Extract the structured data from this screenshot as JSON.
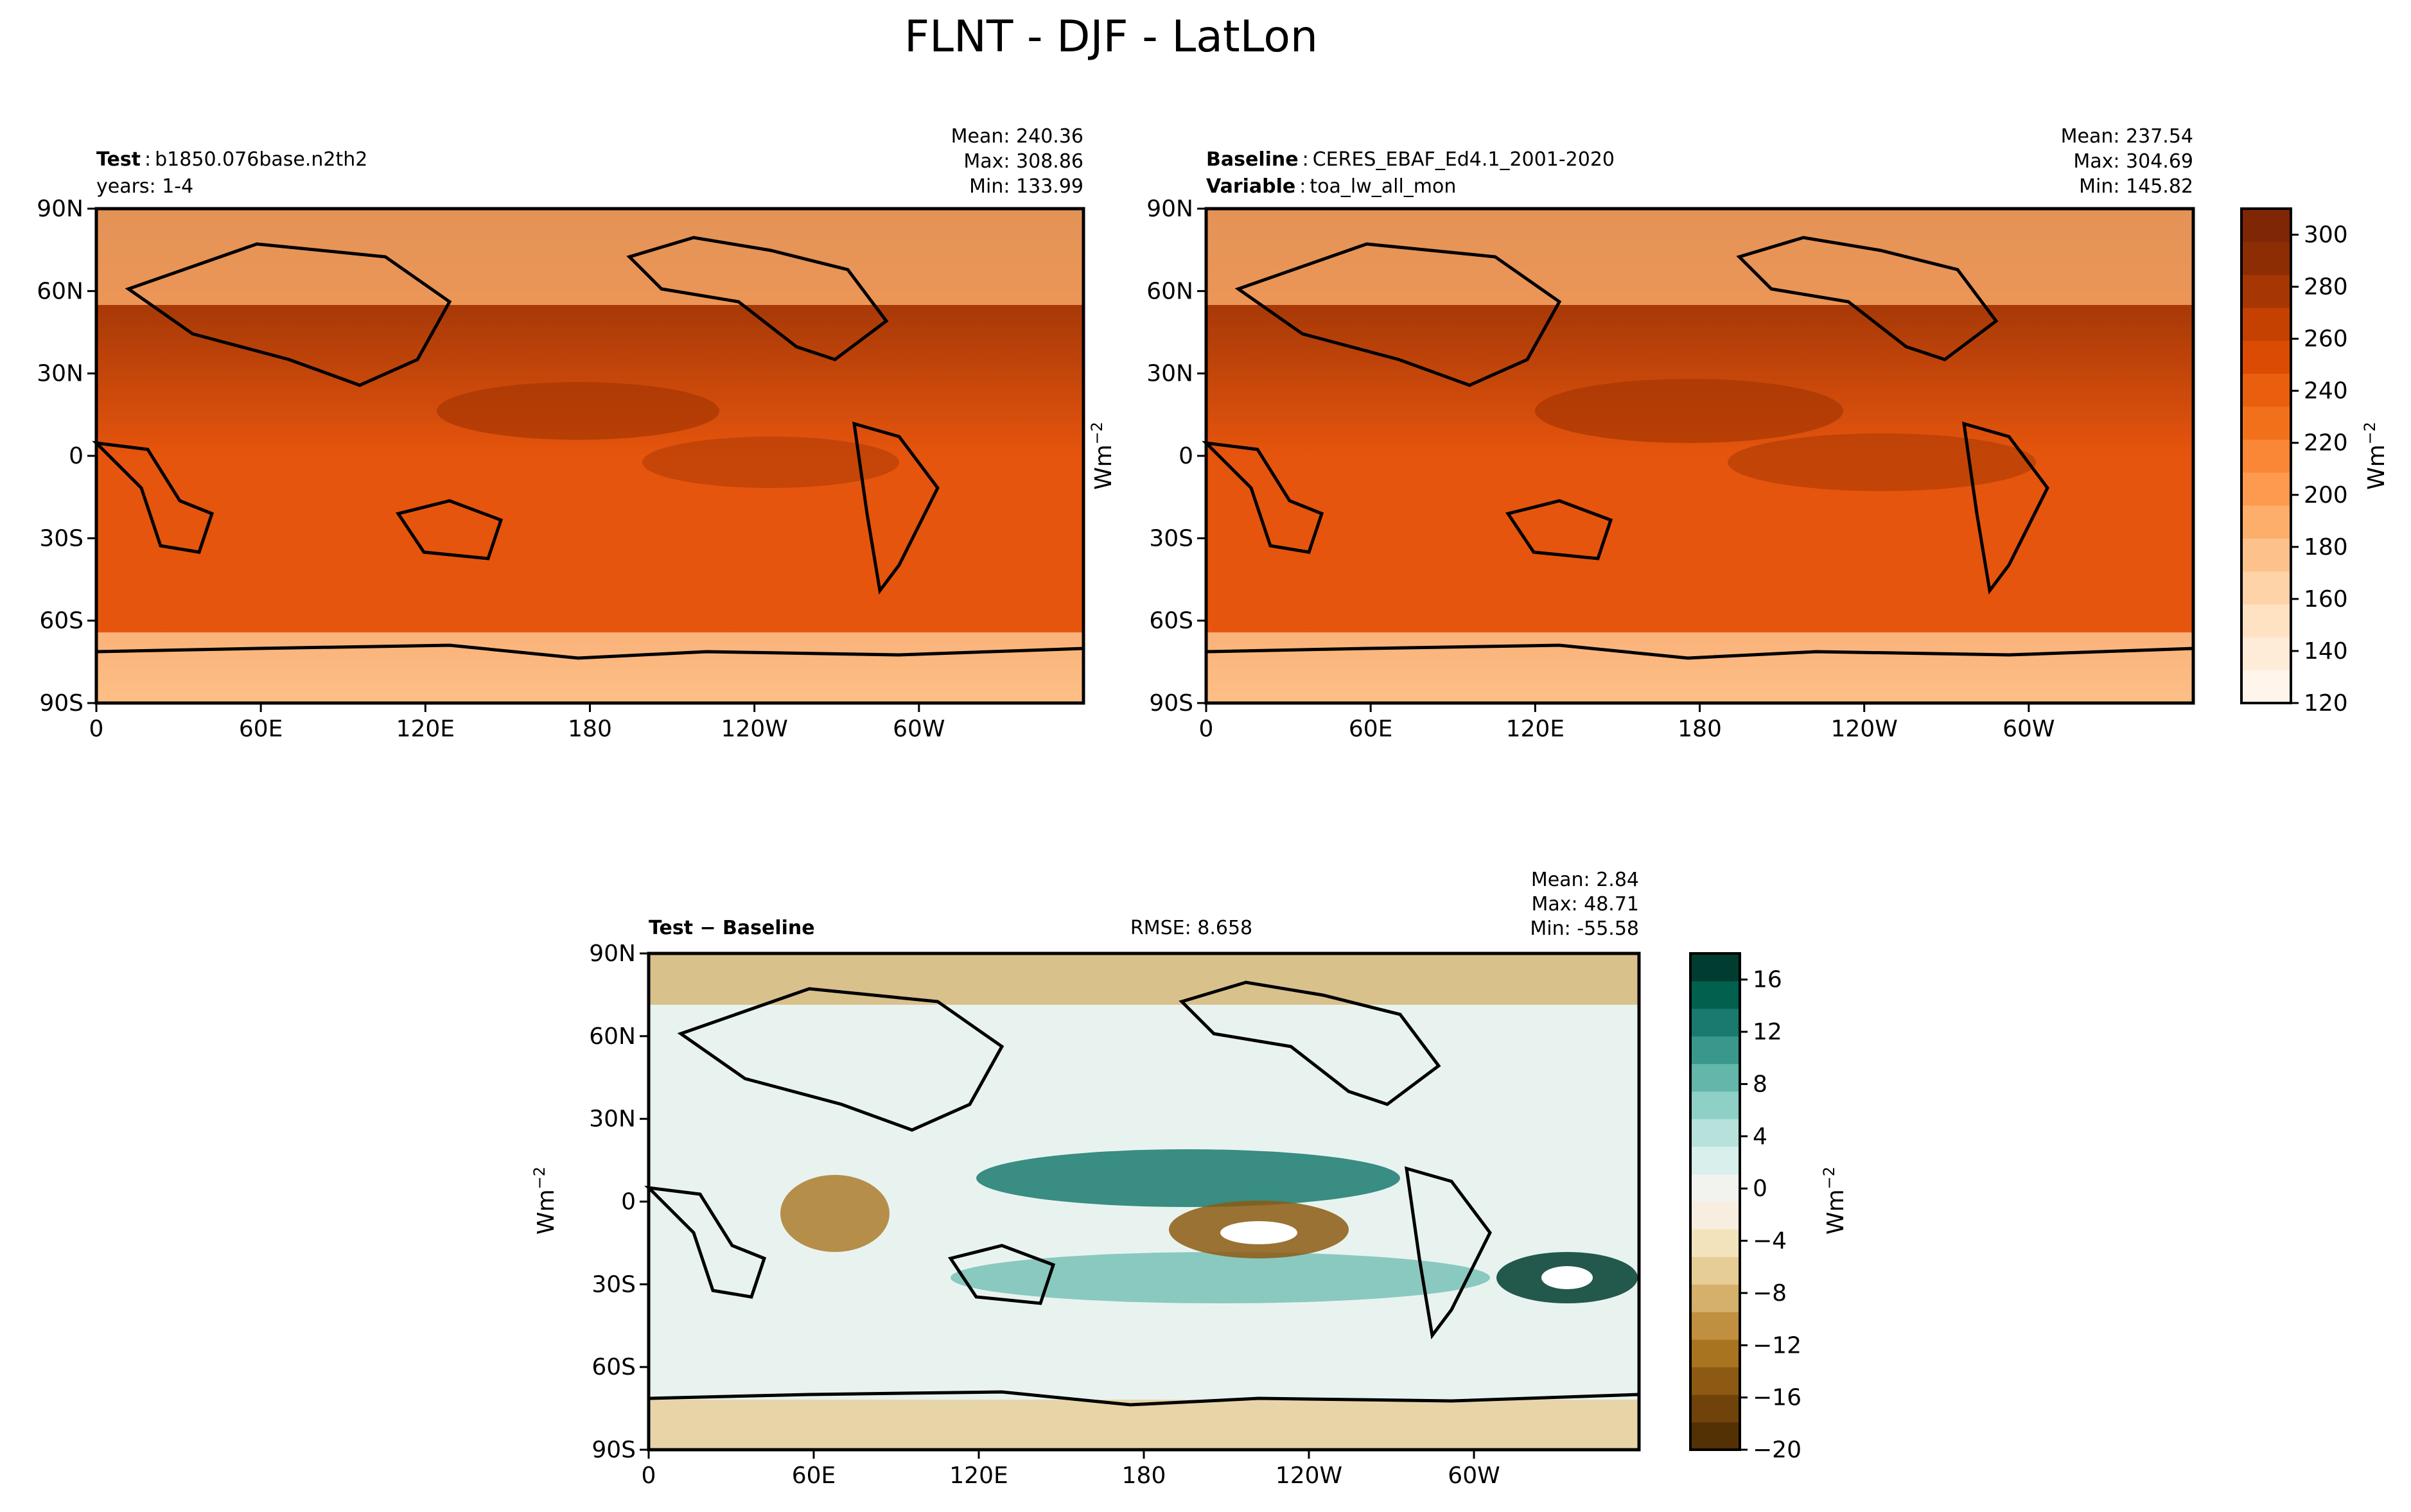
{
  "figure": {
    "title": "FLNT - DJF - LatLon"
  },
  "axis_ticks": {
    "lon": [
      "0",
      "60E",
      "120E",
      "180",
      "120W",
      "60W"
    ],
    "lat": [
      "90N",
      "60N",
      "30N",
      "0",
      "30S",
      "60S",
      "90S"
    ]
  },
  "panels": {
    "test": {
      "label_bold": "Test",
      "label_value": "b1850.076base.n2th2",
      "line2": "years: 1-4",
      "stats": [
        "Mean: 240.36",
        "Max: 308.86",
        "Min: 133.99"
      ]
    },
    "baseline": {
      "label_bold": "Baseline",
      "label_value": "CERES_EBAF_Ed4.1_2001-2020",
      "label2_bold": "Variable",
      "label2_value": "toa_lw_all_mon",
      "stats": [
        "Mean: 237.54",
        "Max: 304.69",
        "Min: 145.82"
      ],
      "ylabel": "Wm",
      "ylabel_exp": "−2"
    },
    "diff": {
      "label_bold": "Test − Baseline",
      "rmse": "RMSE: 8.658",
      "stats": [
        "Mean:  2.84",
        "Max: 48.71",
        "Min: -55.58"
      ],
      "ylabel": "Wm",
      "ylabel_exp": "−2"
    }
  },
  "colorbars": {
    "main": {
      "ticks": [
        "120",
        "140",
        "160",
        "180",
        "200",
        "220",
        "240",
        "260",
        "280",
        "300"
      ],
      "tick_values": [
        120,
        140,
        160,
        180,
        200,
        220,
        240,
        260,
        280,
        300
      ],
      "range": [
        120,
        310
      ],
      "label": "Wm",
      "label_exp": "−2",
      "colors": [
        "#fff5eb",
        "#feebd8",
        "#fee2c2",
        "#fdd3a7",
        "#fdc28c",
        "#fdae6b",
        "#fd9a50",
        "#fa8736",
        "#f3701b",
        "#e95f0d",
        "#db4b03",
        "#c54102",
        "#a63603",
        "#8c2d04",
        "#7f2704"
      ]
    },
    "diff": {
      "ticks": [
        "16",
        "12",
        "8",
        "4",
        "0",
        "−4",
        "−8",
        "−12",
        "−16",
        "−20"
      ],
      "tick_values": [
        16,
        12,
        8,
        4,
        0,
        -4,
        -8,
        -12,
        -16,
        -20
      ],
      "range": [
        -20,
        18
      ],
      "label": "Wm",
      "label_exp": "−2",
      "colors": [
        "#543005",
        "#70430b",
        "#8c5a12",
        "#a8741f",
        "#c08f3f",
        "#d4b06b",
        "#e6cd96",
        "#f3e3bd",
        "#f7eedf",
        "#f2f2ee",
        "#d8efec",
        "#b7e2dc",
        "#8fd0c6",
        "#63b6aa",
        "#3a978c",
        "#1a7a6f",
        "#02604f",
        "#003c30"
      ]
    }
  }
}
